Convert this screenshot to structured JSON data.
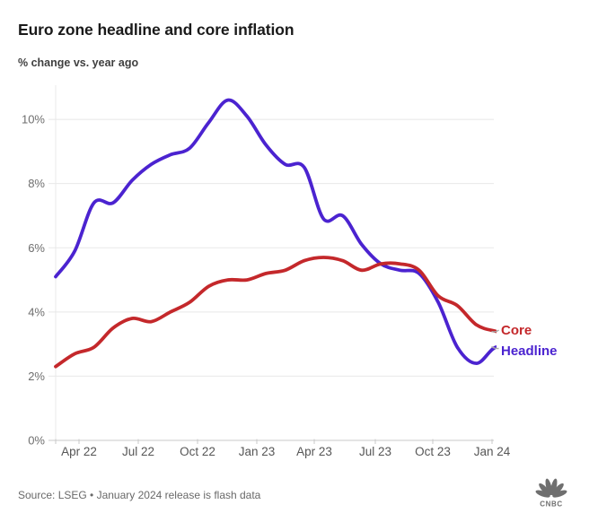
{
  "title": "Euro zone headline and core inflation",
  "subtitle": "% change vs. year ago",
  "source_note": "Source: LSEG • January 2024 release is flash data",
  "logo_text": "CNBC",
  "series_labels": {
    "core": "Core",
    "headline": "Headline"
  },
  "y_axis": {
    "ticks": [
      "0%",
      "2%",
      "4%",
      "6%",
      "8%",
      "10%"
    ]
  },
  "x_axis": {
    "ticks": [
      "Apr 22",
      "Jul 22",
      "Oct 22",
      "Jan 23",
      "Apr 23",
      "Jul 23",
      "Oct 23",
      "Jan 24"
    ]
  },
  "colors": {
    "headline_line": "#4b23d0",
    "core_line": "#c4282b",
    "gridline": "#e8e8e8",
    "baseline": "#c9c9c9",
    "axis_text": "#6e6e6e",
    "title_text": "#1a1a1a"
  },
  "chart_data": {
    "type": "line",
    "title": "Euro zone headline and core inflation",
    "subtitle": "% change vs. year ago",
    "x": [
      "Jan 22",
      "Feb 22",
      "Mar 22",
      "Apr 22",
      "May 22",
      "Jun 22",
      "Jul 22",
      "Aug 22",
      "Sep 22",
      "Oct 22",
      "Nov 22",
      "Dec 22",
      "Jan 23",
      "Feb 23",
      "Mar 23",
      "Apr 23",
      "May 23",
      "Jun 23",
      "Jul 23",
      "Aug 23",
      "Sep 23",
      "Oct 23",
      "Nov 23",
      "Dec 23",
      "Jan 24"
    ],
    "series": [
      {
        "name": "Headline",
        "color": "#4b23d0",
        "values": [
          5.1,
          5.9,
          7.4,
          7.4,
          8.1,
          8.6,
          8.9,
          9.1,
          9.9,
          10.6,
          10.1,
          9.2,
          8.6,
          8.5,
          6.9,
          7.0,
          6.1,
          5.5,
          5.3,
          5.2,
          4.3,
          2.9,
          2.4,
          2.9,
          2.8
        ]
      },
      {
        "name": "Core",
        "color": "#c4282b",
        "values": [
          2.3,
          2.7,
          2.9,
          3.5,
          3.8,
          3.7,
          4.0,
          4.3,
          4.8,
          5.0,
          5.0,
          5.2,
          5.3,
          5.6,
          5.7,
          5.6,
          5.3,
          5.5,
          5.5,
          5.3,
          4.5,
          4.2,
          3.6,
          3.4,
          3.3
        ]
      }
    ],
    "ylabel": "% change vs. year ago",
    "xlabel": "",
    "ylim": [
      0,
      11
    ],
    "grid": true,
    "legend_position": "right-of-line-ends",
    "smoothing": "curved"
  }
}
